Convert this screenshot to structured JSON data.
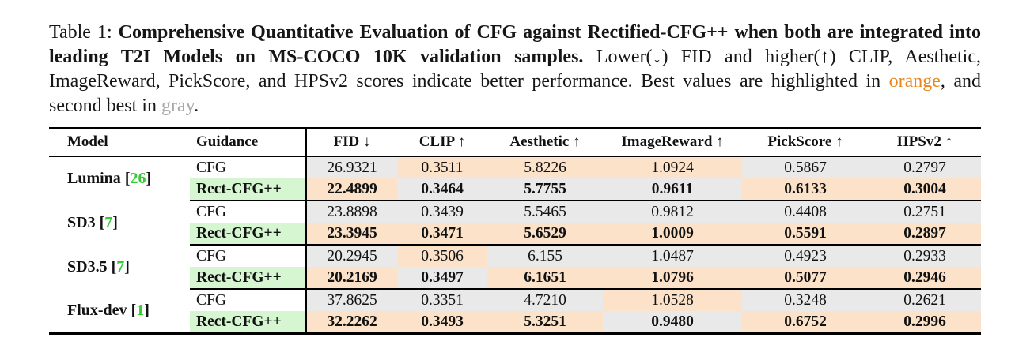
{
  "colors": {
    "highlight_orange": "#fbe2c8",
    "highlight_gray": "#e9e9e9",
    "highlight_green": "#d5f6d0",
    "citation_green": "#33cc33",
    "caption_orange": "#e8871f",
    "caption_gray": "#a8a8a8"
  },
  "caption": {
    "prefix": "Table 1: ",
    "bold_part": "Comprehensive Quantitative Evaluation of CFG against Rectified-CFG++ when both are integrated into leading T2I Models on MS-COCO 10K validation samples.",
    "normal_part1": " Lower(↓) FID and higher(↑) CLIP, Aesthetic, ImageReward, PickScore, and HPSv2 scores indicate better performance. Best values are highlighted in ",
    "orange_word": "orange",
    "normal_part2": ", and second best in ",
    "gray_word": "gray",
    "period": "."
  },
  "table": {
    "headers": [
      "Model",
      "Guidance",
      "FID ↓",
      "CLIP ↑",
      "Aesthetic ↑",
      "ImageReward ↑",
      "PickScore ↑",
      "HPSv2 ↑"
    ],
    "groups": [
      {
        "model": "Lumina",
        "cite": "26",
        "rows": [
          {
            "guidance": "CFG",
            "bold": false,
            "values": [
              {
                "v": "26.9321",
                "hl": "gray"
              },
              {
                "v": "0.3511",
                "hl": "orange"
              },
              {
                "v": "5.8226",
                "hl": "orange"
              },
              {
                "v": "1.0924",
                "hl": "orange"
              },
              {
                "v": "0.5867",
                "hl": "gray"
              },
              {
                "v": "0.2797",
                "hl": "gray"
              }
            ]
          },
          {
            "guidance": "Rect-CFG++",
            "bold": true,
            "values": [
              {
                "v": "22.4899",
                "hl": "orange"
              },
              {
                "v": "0.3464",
                "hl": "gray"
              },
              {
                "v": "5.7755",
                "hl": "gray"
              },
              {
                "v": "0.9611",
                "hl": "gray"
              },
              {
                "v": "0.6133",
                "hl": "orange"
              },
              {
                "v": "0.3004",
                "hl": "orange"
              }
            ]
          }
        ]
      },
      {
        "model": "SD3",
        "cite": "7",
        "rows": [
          {
            "guidance": "CFG",
            "bold": false,
            "values": [
              {
                "v": "23.8898",
                "hl": "gray"
              },
              {
                "v": "0.3439",
                "hl": "gray"
              },
              {
                "v": "5.5465",
                "hl": "gray"
              },
              {
                "v": "0.9812",
                "hl": "gray"
              },
              {
                "v": "0.4408",
                "hl": "gray"
              },
              {
                "v": "0.2751",
                "hl": "gray"
              }
            ]
          },
          {
            "guidance": "Rect-CFG++",
            "bold": true,
            "values": [
              {
                "v": "23.3945",
                "hl": "orange"
              },
              {
                "v": "0.3471",
                "hl": "orange"
              },
              {
                "v": "5.6529",
                "hl": "orange"
              },
              {
                "v": "1.0009",
                "hl": "orange"
              },
              {
                "v": "0.5591",
                "hl": "orange"
              },
              {
                "v": "0.2897",
                "hl": "orange"
              }
            ]
          }
        ]
      },
      {
        "model": "SD3.5",
        "cite": "7",
        "rows": [
          {
            "guidance": "CFG",
            "bold": false,
            "values": [
              {
                "v": "20.2945",
                "hl": "gray"
              },
              {
                "v": "0.3506",
                "hl": "orange"
              },
              {
                "v": "6.155",
                "hl": "gray"
              },
              {
                "v": "1.0487",
                "hl": "gray"
              },
              {
                "v": "0.4923",
                "hl": "gray"
              },
              {
                "v": "0.2933",
                "hl": "gray"
              }
            ]
          },
          {
            "guidance": "Rect-CFG++",
            "bold": true,
            "values": [
              {
                "v": "20.2169",
                "hl": "orange"
              },
              {
                "v": "0.3497",
                "hl": "gray"
              },
              {
                "v": "6.1651",
                "hl": "orange"
              },
              {
                "v": "1.0796",
                "hl": "orange"
              },
              {
                "v": "0.5077",
                "hl": "orange"
              },
              {
                "v": "0.2946",
                "hl": "orange"
              }
            ]
          }
        ]
      },
      {
        "model": "Flux-dev",
        "cite": "1",
        "rows": [
          {
            "guidance": "CFG",
            "bold": false,
            "values": [
              {
                "v": "37.8625",
                "hl": "gray"
              },
              {
                "v": "0.3351",
                "hl": "gray"
              },
              {
                "v": "4.7210",
                "hl": "gray"
              },
              {
                "v": "1.0528",
                "hl": "orange"
              },
              {
                "v": "0.3248",
                "hl": "gray"
              },
              {
                "v": "0.2621",
                "hl": "gray"
              }
            ]
          },
          {
            "guidance": "Rect-CFG++",
            "bold": true,
            "values": [
              {
                "v": "32.2262",
                "hl": "orange"
              },
              {
                "v": "0.3493",
                "hl": "orange"
              },
              {
                "v": "5.3251",
                "hl": "orange"
              },
              {
                "v": "0.9480",
                "hl": "gray"
              },
              {
                "v": "0.6752",
                "hl": "orange"
              },
              {
                "v": "0.2996",
                "hl": "orange"
              }
            ]
          }
        ]
      }
    ]
  }
}
